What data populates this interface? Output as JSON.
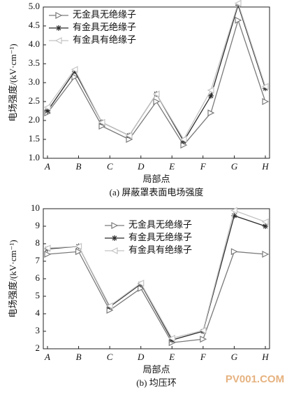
{
  "chart_data": [
    {
      "type": "line",
      "title": "(a) 屏蔽罩表面电场强度",
      "xlabel": "局部点",
      "ylabel": "电场强度/(kV·cm⁻¹)",
      "x": [
        1,
        2,
        3,
        4,
        5,
        6,
        7,
        8,
        9
      ],
      "xlim": [
        1,
        9
      ],
      "xticks": [
        {
          "value": 1,
          "label": "A"
        },
        {
          "value": 2.14,
          "label": "B"
        },
        {
          "value": 3.29,
          "label": "C"
        },
        {
          "value": 4.43,
          "label": "D"
        },
        {
          "value": 5.57,
          "label": "E"
        },
        {
          "value": 6.71,
          "label": "F"
        },
        {
          "value": 7.86,
          "label": "G"
        },
        {
          "value": 9,
          "label": "H"
        }
      ],
      "ylim": [
        1,
        5
      ],
      "yticks": [
        {
          "value": 1,
          "label": "1.0"
        },
        {
          "value": 1.5,
          "label": "1.5"
        },
        {
          "value": 2,
          "label": "2.0"
        },
        {
          "value": 2.5,
          "label": "2.5"
        },
        {
          "value": 3,
          "label": "3.0"
        },
        {
          "value": 3.5,
          "label": "3.5"
        },
        {
          "value": 4,
          "label": "4.0"
        },
        {
          "value": 4.5,
          "label": "4.5"
        },
        {
          "value": 5,
          "label": "5.0"
        }
      ],
      "series": [
        {
          "name": "无金具无绝缘子",
          "color": "#7a7a7a",
          "marker": "triangle-right",
          "values": [
            2.2,
            3.15,
            1.85,
            1.5,
            2.5,
            1.35,
            2.2,
            4.65,
            2.5
          ]
        },
        {
          "name": "有金具无绝缘子",
          "color": "#2a2a2a",
          "marker": "star",
          "values": [
            2.25,
            3.3,
            1.95,
            1.6,
            2.7,
            1.45,
            2.65,
            5.05,
            2.85
          ]
        },
        {
          "name": "有金具有绝缘子",
          "color": "#c4c4c4",
          "marker": "triangle-left",
          "values": [
            2.35,
            3.35,
            1.95,
            1.6,
            2.7,
            1.5,
            2.8,
            5.1,
            2.9
          ]
        }
      ]
    },
    {
      "type": "line",
      "title": "(b) 均压环",
      "xlabel": "局部点",
      "ylabel": "电场强度/(kV·cm⁻¹)",
      "categories": [
        "A",
        "B",
        "C",
        "D",
        "E",
        "F",
        "G",
        "H"
      ],
      "ylim": [
        2,
        10
      ],
      "yticks": [
        2,
        3,
        4,
        5,
        6,
        7,
        8,
        9,
        10
      ],
      "series": [
        {
          "name": "无金具无绝缘子",
          "color": "#7a7a7a",
          "marker": "triangle-right",
          "values": [
            7.4,
            7.55,
            4.2,
            5.45,
            2.35,
            2.55,
            7.55,
            7.4
          ]
        },
        {
          "name": "有金具无绝缘子",
          "color": "#2a2a2a",
          "marker": "star",
          "values": [
            7.7,
            7.85,
            4.4,
            5.7,
            2.5,
            3.0,
            9.6,
            9.0
          ]
        },
        {
          "name": "有金具有绝缘子",
          "color": "#c4c4c4",
          "marker": "triangle-left",
          "values": [
            7.75,
            7.85,
            4.45,
            5.75,
            2.6,
            3.05,
            9.9,
            9.25
          ]
        }
      ]
    }
  ]
}
